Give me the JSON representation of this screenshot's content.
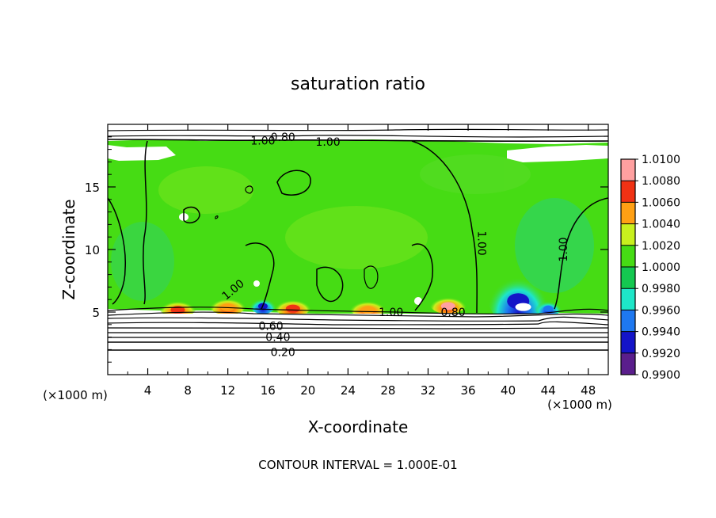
{
  "chart_data": {
    "type": "heatmap",
    "title": "saturation ratio",
    "xlabel": "X-coordinate",
    "ylabel": "Z-coordinate",
    "x_unit_note": "(×1000 m)",
    "y_unit_note": "(×1000 m)",
    "xlim": [
      0,
      50
    ],
    "ylim": [
      0,
      20
    ],
    "x_ticks": [
      4,
      8,
      12,
      16,
      20,
      24,
      28,
      32,
      36,
      40,
      44,
      48
    ],
    "x_tick_labels": [
      "4",
      "8",
      "12",
      "16",
      "20",
      "24",
      "28",
      "32",
      "36",
      "40",
      "44",
      "48"
    ],
    "y_ticks": [
      5,
      10,
      15
    ],
    "y_tick_labels": [
      "5",
      "10",
      "15"
    ],
    "footer": "CONTOUR INTERVAL = 1.000E-01",
    "colorbar": {
      "levels": [
        0.99,
        0.992,
        0.994,
        0.996,
        0.998,
        1.0,
        1.002,
        1.004,
        1.006,
        1.008,
        1.01
      ],
      "labels": [
        "0.9900",
        "0.9920",
        "0.9940",
        "0.9960",
        "0.9980",
        "1.0000",
        "1.0020",
        "1.0040",
        "1.0060",
        "1.0080",
        "1.0100"
      ],
      "colors": [
        "#5a1e8c",
        "#1414c8",
        "#1e78f0",
        "#1ee6c8",
        "#14c850",
        "#46dc14",
        "#c8f01e",
        "#ffa014",
        "#f03214",
        "#ffa0a0"
      ]
    },
    "contour_labels": [
      {
        "text": "1.00",
        "x": 22.0,
        "z": 18.6,
        "rotate": 0
      },
      {
        "text": "0.80",
        "x": 34.5,
        "z": 5.0,
        "rotate": 0
      },
      {
        "text": "1.00",
        "x": 15.5,
        "z": 18.7,
        "rotate": 0
      },
      {
        "text": "0.80",
        "x": 17.5,
        "z": 19.0,
        "rotate": 0
      },
      {
        "text": "1.00",
        "x": 37.4,
        "z": 10.5,
        "rotate": 90
      },
      {
        "text": "1.00",
        "x": 45.5,
        "z": 10.0,
        "rotate": -90
      },
      {
        "text": "1.00",
        "x": 12.5,
        "z": 6.8,
        "rotate": -40
      },
      {
        "text": "1.00",
        "x": 28.3,
        "z": 5.0,
        "rotate": 0
      },
      {
        "text": "0.60",
        "x": 16.3,
        "z": 3.9,
        "rotate": 0
      },
      {
        "text": "0.40",
        "x": 17.0,
        "z": 3.0,
        "rotate": 0
      },
      {
        "text": "0.20",
        "x": 17.5,
        "z": 1.8,
        "rotate": 0
      }
    ],
    "hotspots": [
      {
        "x": 7.0,
        "z": 5.3,
        "level": 1.006
      },
      {
        "x": 12.0,
        "z": 5.5,
        "level": 1.004
      },
      {
        "x": 18.5,
        "z": 5.4,
        "level": 1.007
      },
      {
        "x": 26.0,
        "z": 5.3,
        "level": 1.005
      },
      {
        "x": 34.0,
        "z": 5.6,
        "level": 1.008
      }
    ],
    "coldspots": [
      {
        "x": 41.0,
        "z": 6.0,
        "level": 0.992
      },
      {
        "x": 15.5,
        "z": 5.6,
        "level": 0.993
      },
      {
        "x": 44.0,
        "z": 5.4,
        "level": 0.995
      }
    ]
  }
}
